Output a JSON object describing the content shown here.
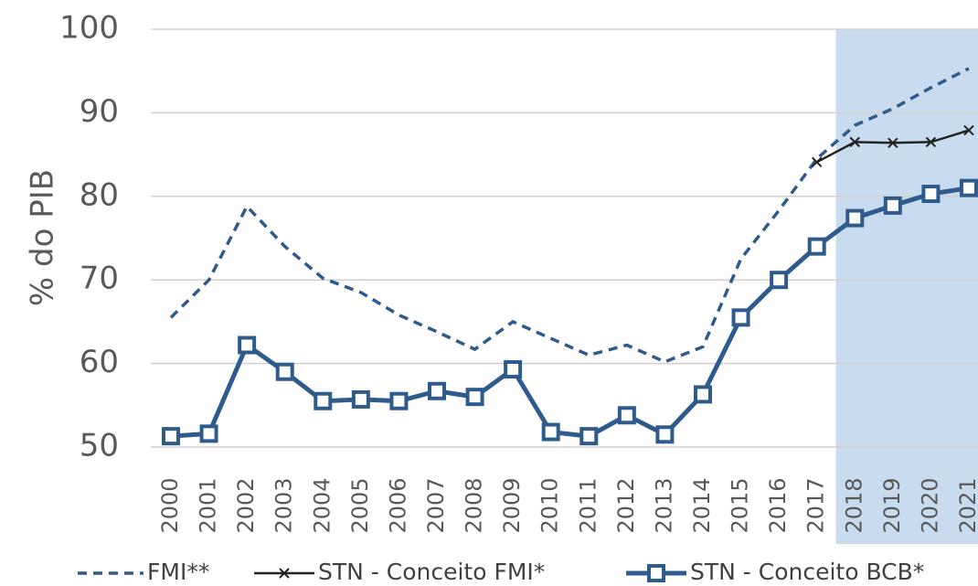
{
  "chart_data": {
    "type": "line",
    "y_label": "% do PIB",
    "categories": [
      "2000",
      "2001",
      "2002",
      "2003",
      "2004",
      "2005",
      "2006",
      "2007",
      "2008",
      "2009",
      "2010",
      "2011",
      "2012",
      "2013",
      "2014",
      "2015",
      "2016",
      "2017",
      "2018",
      "2019",
      "2020",
      "2021"
    ],
    "series": [
      {
        "name": "FMI**",
        "color": "#2e5a8c",
        "style": "dashed",
        "marker": "none",
        "values": [
          65.5,
          70,
          78.8,
          74,
          70.2,
          68.5,
          65.8,
          63.8,
          61.7,
          65,
          63,
          61,
          62.2,
          60.2,
          62,
          72.5,
          78.3,
          84.5,
          88.5,
          90.5,
          93,
          95.3
        ]
      },
      {
        "name": "STN - Conceito FMI*",
        "color": "#222222",
        "style": "solid",
        "marker": "x",
        "values": [
          null,
          null,
          null,
          null,
          null,
          null,
          null,
          null,
          null,
          null,
          null,
          null,
          null,
          null,
          null,
          null,
          null,
          84.1,
          86.5,
          86.4,
          86.5,
          87.9
        ]
      },
      {
        "name": "STN - Conceito BCB*",
        "color": "#2e5a8c",
        "style": "solid",
        "marker": "square",
        "values": [
          51.3,
          51.6,
          62.2,
          59,
          55.5,
          55.7,
          55.5,
          56.7,
          56,
          59.3,
          51.8,
          51.3,
          53.8,
          51.5,
          56.3,
          65.5,
          70,
          74,
          77.4,
          78.9,
          80.3,
          81
        ]
      }
    ],
    "ylim": [
      50,
      100
    ],
    "yticks": [
      50,
      60,
      70,
      80,
      90,
      100
    ],
    "grid": true
  }
}
